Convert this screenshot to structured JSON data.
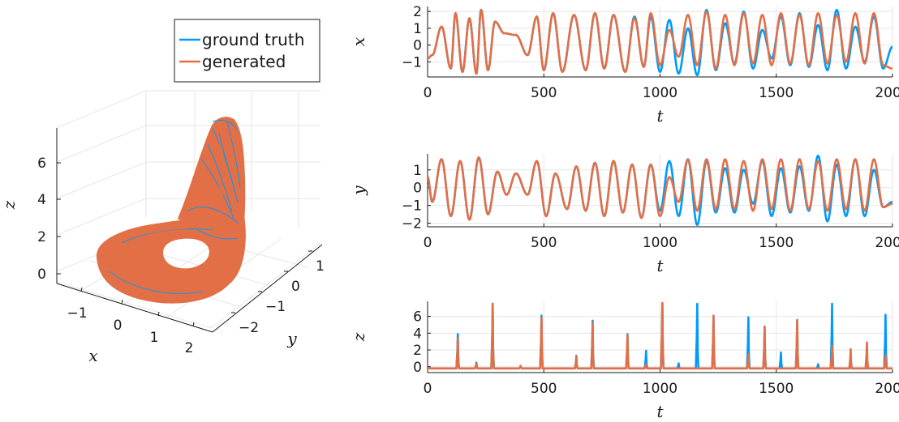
{
  "colors": {
    "ground_truth": "#009af9",
    "generated": "#e26f46",
    "axis": "#1a1a1a",
    "grid": "#e6e6e6"
  },
  "legend": {
    "position": "top-right of 3D panel",
    "entries": [
      {
        "label": "ground truth",
        "color": "#009af9"
      },
      {
        "label": "generated",
        "color": "#e26f46"
      }
    ]
  },
  "chart_data": [
    {
      "id": "attractor-3d",
      "type": "scatter",
      "mode": "3d-line",
      "xlabel": "x",
      "ylabel": "y",
      "zlabel": "z",
      "xlim": [
        -1.8,
        2.4
      ],
      "ylim": [
        -2.3,
        1.7
      ],
      "zlim": [
        -0.8,
        8
      ],
      "xticks": [
        "−1",
        "0",
        "1",
        "2"
      ],
      "yticks": [
        "−2",
        "−1",
        "0",
        "1"
      ],
      "zticks": [
        "0",
        "2",
        "4",
        "6"
      ],
      "description_series": [
        "ground truth",
        "generated"
      ],
      "grid": true
    },
    {
      "id": "x-series",
      "type": "line",
      "xlabel": "t",
      "ylabel": "x",
      "xlim": [
        0,
        2000
      ],
      "ylim": [
        -1.9,
        2.3
      ],
      "xticks": [
        "0",
        "500",
        "1000",
        "1500",
        "2000"
      ],
      "yticks": [
        "−1",
        "0",
        "1",
        "2"
      ],
      "grid": true,
      "t": [
        0,
        20,
        60,
        100,
        120,
        150,
        180,
        210,
        230,
        260,
        290,
        330,
        380,
        430,
        470,
        500,
        540,
        580,
        630,
        680,
        720,
        760,
        800,
        850,
        890,
        930,
        960,
        1000,
        1040,
        1080,
        1120,
        1160,
        1200,
        1240,
        1280,
        1320,
        1360,
        1400,
        1440,
        1480,
        1520,
        1560,
        1600,
        1640,
        1680,
        1720,
        1760,
        1800,
        1840,
        1880,
        1920,
        1960,
        2000
      ],
      "series": [
        {
          "name": "ground truth",
          "values": [
            -0.8,
            -0.6,
            1.1,
            -1.4,
            1.9,
            -1.6,
            1.6,
            -1.7,
            2.1,
            -1.5,
            1.4,
            0.7,
            0.6,
            -0.6,
            1.7,
            -1.5,
            1.9,
            -1.6,
            1.8,
            -1.5,
            1.9,
            -1.4,
            1.8,
            -1.6,
            1.7,
            -1.3,
            1.7,
            -1.6,
            1.5,
            -1.7,
            1.0,
            -1.8,
            2.1,
            -1.5,
            1.3,
            -1.1,
            2.0,
            -1.4,
            0.9,
            -0.8,
            1.7,
            -1.2,
            1.9,
            -1.3,
            1.2,
            -1.5,
            2.1,
            -1.4,
            1.1,
            -1.0,
            1.7,
            -1.4,
            -0.1
          ]
        },
        {
          "name": "generated",
          "values": [
            -0.8,
            -0.6,
            1.1,
            -1.4,
            1.9,
            -1.6,
            1.6,
            -1.7,
            2.1,
            -1.5,
            1.4,
            0.7,
            0.6,
            -0.6,
            1.7,
            -1.5,
            1.9,
            -1.6,
            1.8,
            -1.5,
            1.9,
            -1.4,
            1.8,
            -1.6,
            1.6,
            -1.3,
            1.9,
            -1.2,
            0.9,
            -0.7,
            1.8,
            -1.2,
            2.0,
            -1.4,
            1.8,
            -1.2,
            1.9,
            -1.1,
            1.8,
            -1.2,
            1.9,
            -1.1,
            1.8,
            -1.2,
            1.9,
            -1.1,
            1.8,
            -1.0,
            1.9,
            -1.1,
            1.9,
            -1.2,
            -1.4
          ]
        }
      ]
    },
    {
      "id": "y-series",
      "type": "line",
      "xlabel": "t",
      "ylabel": "y",
      "xlim": [
        0,
        2000
      ],
      "ylim": [
        -2.2,
        1.9
      ],
      "xticks": [
        "0",
        "500",
        "1000",
        "1500",
        "2000"
      ],
      "yticks": [
        "−2",
        "−1",
        "0",
        "1"
      ],
      "grid": true,
      "t": [
        0,
        20,
        60,
        100,
        140,
        180,
        220,
        260,
        300,
        340,
        380,
        430,
        470,
        510,
        550,
        600,
        640,
        680,
        720,
        760,
        800,
        840,
        880,
        920,
        960,
        1000,
        1040,
        1080,
        1120,
        1160,
        1200,
        1240,
        1280,
        1320,
        1360,
        1400,
        1440,
        1480,
        1520,
        1560,
        1600,
        1640,
        1680,
        1720,
        1760,
        1800,
        1840,
        1880,
        1920,
        1960,
        2000
      ],
      "series": [
        {
          "name": "ground truth",
          "values": [
            0.6,
            -0.8,
            1.6,
            -1.6,
            1.5,
            -1.8,
            1.7,
            -1.5,
            0.9,
            -0.4,
            0.8,
            -0.4,
            1.5,
            -1.6,
            0.8,
            -1.2,
            1.2,
            -1.3,
            1.4,
            -1.6,
            1.5,
            -1.4,
            1.3,
            -1.7,
            1.3,
            -1.3,
            1.5,
            -1.6,
            1.6,
            -2.1,
            1.5,
            -1.4,
            1.1,
            -1.4,
            1.0,
            -0.9,
            1.5,
            -1.6,
            1.1,
            -1.4,
            1.2,
            -1.3,
            1.8,
            -1.9,
            1.3,
            -1.6,
            1.6,
            -1.6,
            1.0,
            -1.1,
            -0.8
          ]
        },
        {
          "name": "generated",
          "values": [
            0.6,
            -0.8,
            1.6,
            -1.6,
            1.5,
            -1.8,
            1.7,
            -1.5,
            0.9,
            -0.4,
            0.8,
            -0.4,
            1.5,
            -1.6,
            0.8,
            -1.2,
            1.2,
            -1.3,
            1.4,
            -1.6,
            1.5,
            -1.4,
            1.3,
            -1.7,
            1.3,
            -1.6,
            0.6,
            -0.8,
            1.6,
            -1.3,
            1.6,
            -1.2,
            1.6,
            -1.2,
            1.5,
            -1.3,
            1.6,
            -1.2,
            1.6,
            -1.3,
            1.6,
            -1.2,
            1.5,
            -1.3,
            1.6,
            -1.2,
            1.6,
            -1.3,
            1.6,
            -1.1,
            -0.9
          ]
        }
      ]
    },
    {
      "id": "z-series",
      "type": "line",
      "xlabel": "t",
      "ylabel": "z",
      "xlim": [
        0,
        2000
      ],
      "ylim": [
        -0.7,
        7.8
      ],
      "xticks": [
        "0",
        "500",
        "1000",
        "1500",
        "2000"
      ],
      "yticks": [
        "0",
        "2",
        "4",
        "6"
      ],
      "grid": true,
      "baseline": -0.2,
      "series": [
        {
          "name": "ground truth",
          "spikes": [
            [
              130,
              3.9
            ],
            [
              210,
              0.5
            ],
            [
              280,
              7.5
            ],
            [
              400,
              0.1
            ],
            [
              490,
              6.1
            ],
            [
              640,
              1.3
            ],
            [
              710,
              5.5
            ],
            [
              860,
              3.9
            ],
            [
              940,
              1.9
            ],
            [
              1010,
              7.5
            ],
            [
              1080,
              0.4
            ],
            [
              1160,
              7.5
            ],
            [
              1230,
              6.0
            ],
            [
              1380,
              5.9
            ],
            [
              1450,
              4.7
            ],
            [
              1520,
              1.7
            ],
            [
              1590,
              5.5
            ],
            [
              1680,
              0.3
            ],
            [
              1740,
              7.5
            ],
            [
              1820,
              0.1
            ],
            [
              1970,
              6.2
            ]
          ]
        },
        {
          "name": "generated",
          "spikes": [
            [
              130,
              3.4
            ],
            [
              210,
              0.4
            ],
            [
              280,
              7.4
            ],
            [
              400,
              0.1
            ],
            [
              490,
              5.9
            ],
            [
              640,
              1.2
            ],
            [
              710,
              5.2
            ],
            [
              860,
              3.8
            ],
            [
              940,
              0.3
            ],
            [
              1010,
              7.6
            ],
            [
              1230,
              6.1
            ],
            [
              1380,
              1.5
            ],
            [
              1450,
              4.8
            ],
            [
              1590,
              5.6
            ],
            [
              1740,
              2.5
            ],
            [
              1820,
              2.1
            ],
            [
              1890,
              2.9
            ],
            [
              1970,
              1.4
            ]
          ]
        }
      ]
    }
  ]
}
